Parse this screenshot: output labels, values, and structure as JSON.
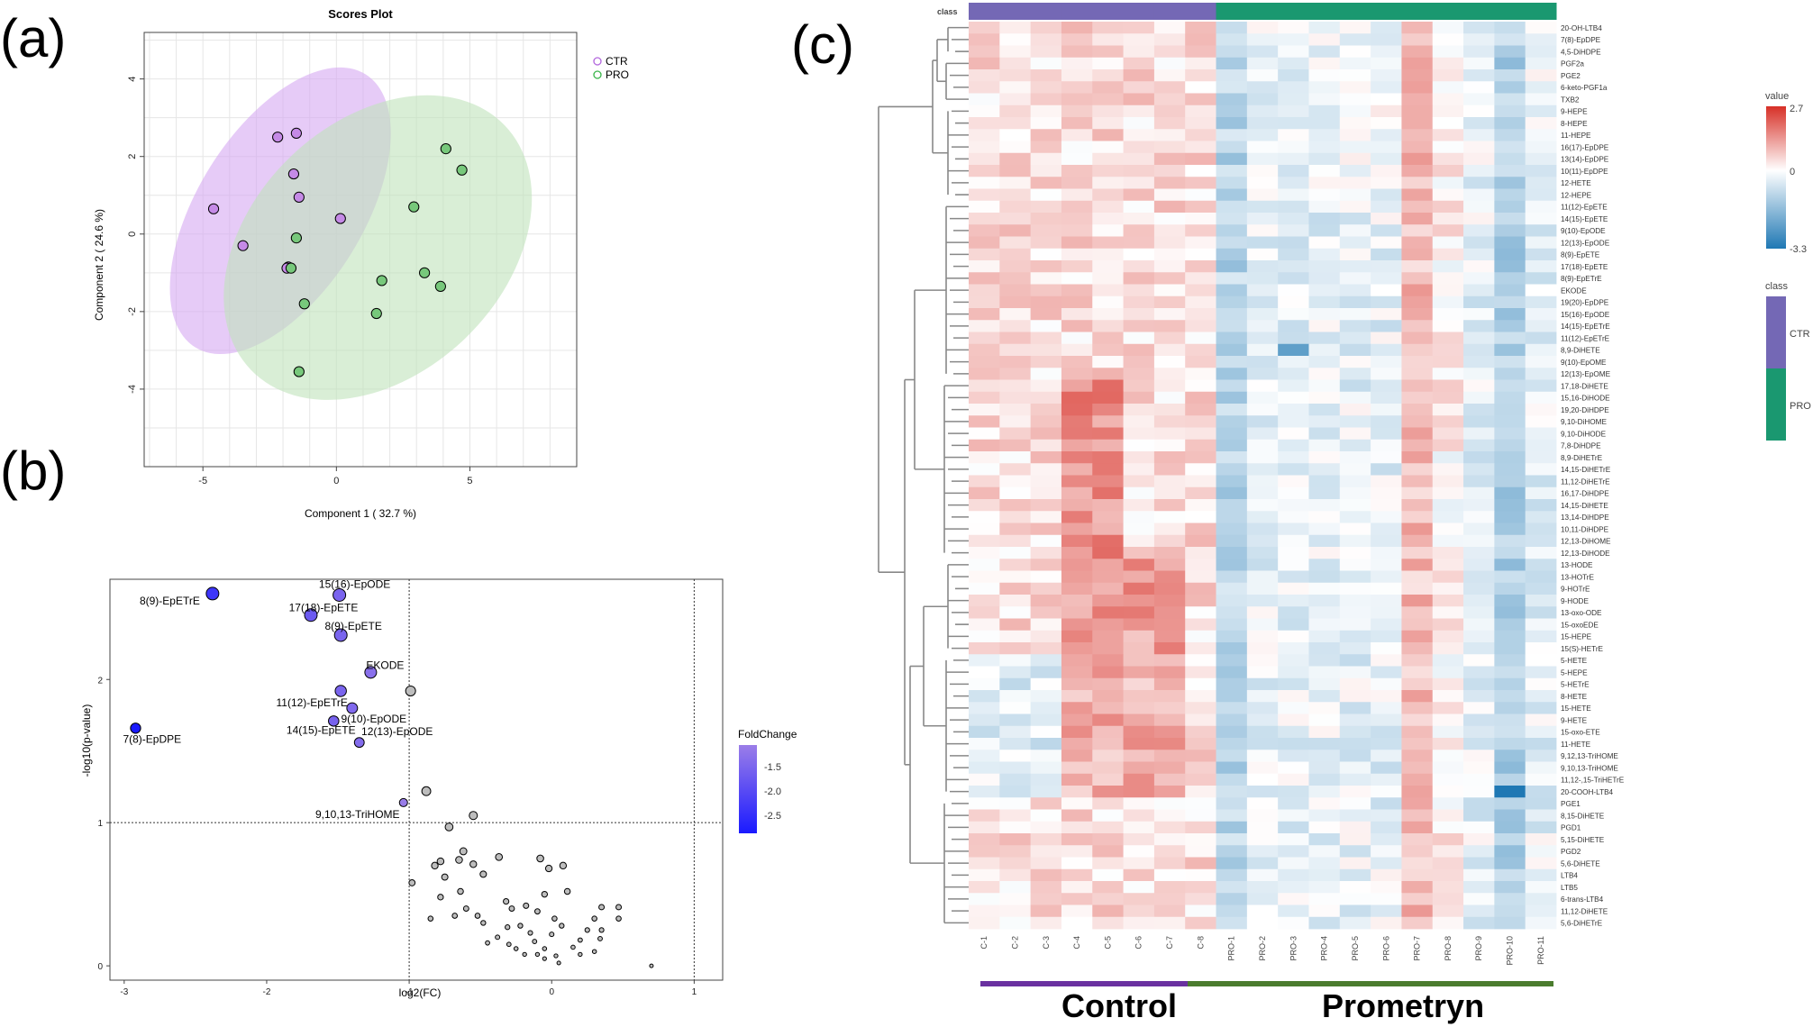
{
  "panels": {
    "a": "(a)",
    "b": "(b)",
    "c": "(c)"
  },
  "colors": {
    "ctr": "#b266dd",
    "pro": "#3ab54a",
    "ctr_fill": "#d6a8f2",
    "pro_fill": "#bfe3bb",
    "class_ctr": "#7468b5",
    "class_pro": "#1a9870",
    "hm_low": "#1f78b4",
    "hm_mid": "#ffffff",
    "hm_high": "#d73027",
    "bar_control": "#6a31a0",
    "bar_prometryn": "#4b7c2e"
  },
  "chart_data": [
    {
      "type": "scatter",
      "title": "Scores Plot",
      "xlabel": "Component 1 ( 32.7 %)",
      "ylabel": "Component 2 ( 24.6 %)",
      "xlim": [
        -7.2,
        9.0
      ],
      "ylim": [
        -6.0,
        5.2
      ],
      "xticks": [
        "-5",
        "0",
        "5"
      ],
      "yticks": [
        "4",
        "2",
        "0",
        "-2",
        "-4"
      ],
      "legend": [
        "CTR",
        "PRO"
      ],
      "series": [
        {
          "name": "CTR",
          "points": [
            [
              -4.6,
              0.65
            ],
            [
              -3.5,
              -0.3
            ],
            [
              -2.2,
              2.5
            ],
            [
              -1.5,
              2.6
            ],
            [
              -1.6,
              1.55
            ],
            [
              -1.4,
              0.95
            ],
            [
              -1.8,
              -0.85
            ],
            [
              0.15,
              0.4
            ],
            [
              -1.85,
              -0.88
            ]
          ]
        },
        {
          "name": "PRO",
          "points": [
            [
              4.1,
              2.2
            ],
            [
              4.7,
              1.65
            ],
            [
              2.9,
              0.7
            ],
            [
              -1.5,
              -0.1
            ],
            [
              1.7,
              -1.2
            ],
            [
              3.3,
              -1.0
            ],
            [
              3.9,
              -1.35
            ],
            [
              -1.2,
              -1.8
            ],
            [
              1.5,
              -2.05
            ],
            [
              -1.4,
              -3.55
            ],
            [
              -1.7,
              -0.88
            ]
          ]
        }
      ]
    },
    {
      "type": "scatter",
      "title": "",
      "xlabel": "log2(FC)",
      "ylabel": "-log10(p-value)",
      "xlim": [
        -3.1,
        1.2
      ],
      "ylim": [
        -0.1,
        2.7
      ],
      "xticks": [
        "-3",
        "-2",
        "-1",
        "0",
        "1"
      ],
      "yticks": [
        "0",
        "1",
        "2"
      ],
      "legend_title": "FoldChange",
      "legend_ticks": [
        "-1.5",
        "-2.0",
        "-2.5"
      ],
      "significant": [
        {
          "label": "8(9)-EpETrE",
          "x": -2.38,
          "y": 2.6,
          "fc": -2.38
        },
        {
          "label": "15(16)-EpODE",
          "x": -1.49,
          "y": 2.59,
          "fc": -1.49
        },
        {
          "label": "17(18)-EpETE",
          "x": -1.69,
          "y": 2.45,
          "fc": -1.69
        },
        {
          "label": "8(9)-EpETE",
          "x": -1.48,
          "y": 2.31,
          "fc": -1.48
        },
        {
          "label": "EKODE",
          "x": -1.27,
          "y": 2.05,
          "fc": -1.27
        },
        {
          "label": "11(12)-EpETrE",
          "x": -1.48,
          "y": 1.92,
          "fc": -1.48
        },
        {
          "label": "9(10)-EpODE",
          "x": -1.4,
          "y": 1.8,
          "fc": -1.4
        },
        {
          "label": "14(15)-EpETE",
          "x": -1.53,
          "y": 1.71,
          "fc": -1.53
        },
        {
          "label": "12(13)-EpODE",
          "x": -1.35,
          "y": 1.56,
          "fc": -1.35
        },
        {
          "label": "7(8)-EpDPE",
          "x": -2.92,
          "y": 1.66,
          "fc": -2.92
        },
        {
          "label": "9,10,13-TriHOME",
          "x": -1.04,
          "y": 1.14,
          "fc": -1.04
        }
      ],
      "other_points": [
        [
          -0.99,
          1.92
        ],
        [
          -0.88,
          1.22
        ],
        [
          -0.55,
          1.05
        ],
        [
          -0.72,
          0.97
        ],
        [
          -0.62,
          0.8
        ],
        [
          -0.37,
          0.76
        ],
        [
          -0.08,
          0.75
        ],
        [
          0.08,
          0.7
        ],
        [
          -0.02,
          0.68
        ],
        [
          -0.78,
          0.73
        ],
        [
          -0.82,
          0.7
        ],
        [
          -0.65,
          0.74
        ],
        [
          -0.55,
          0.71
        ],
        [
          -0.48,
          0.64
        ],
        [
          -0.98,
          0.58
        ],
        [
          -0.75,
          0.62
        ],
        [
          -0.78,
          0.48
        ],
        [
          -0.64,
          0.52
        ],
        [
          -0.6,
          0.4
        ],
        [
          -0.52,
          0.35
        ],
        [
          -0.48,
          0.3
        ],
        [
          -0.32,
          0.45
        ],
        [
          -0.28,
          0.4
        ],
        [
          -0.18,
          0.42
        ],
        [
          -0.1,
          0.38
        ],
        [
          -0.05,
          0.5
        ],
        [
          0.02,
          0.33
        ],
        [
          0.07,
          0.28
        ],
        [
          -0.22,
          0.28
        ],
        [
          -0.15,
          0.23
        ],
        [
          -0.38,
          0.2
        ],
        [
          -0.45,
          0.16
        ],
        [
          -0.3,
          0.15
        ],
        [
          -0.25,
          0.12
        ],
        [
          -0.12,
          0.17
        ],
        [
          -0.05,
          0.12
        ],
        [
          0.03,
          0.07
        ],
        [
          -0.1,
          0.08
        ],
        [
          0.2,
          0.18
        ],
        [
          0.25,
          0.25
        ],
        [
          0.3,
          0.33
        ],
        [
          0.35,
          0.41
        ],
        [
          0.47,
          0.41
        ],
        [
          0.47,
          0.33
        ],
        [
          0.35,
          0.25
        ],
        [
          0.34,
          0.19
        ],
        [
          0.3,
          0.1
        ],
        [
          0.15,
          0.13
        ],
        [
          0.2,
          0.08
        ],
        [
          -0.85,
          0.33
        ],
        [
          0.05,
          0.02
        ],
        [
          0.7,
          0.0
        ],
        [
          -0.19,
          0.08
        ],
        [
          -0.31,
          0.27
        ],
        [
          0.11,
          0.52
        ],
        [
          0.0,
          0.22
        ],
        [
          -0.68,
          0.35
        ],
        [
          -0.05,
          0.05
        ]
      ]
    },
    {
      "type": "heatmap",
      "class_label": "class",
      "columns": [
        "C-1",
        "C-2",
        "C-3",
        "C-4",
        "C-5",
        "C-6",
        "C-7",
        "C-8",
        "PRO-1",
        "PRO-2",
        "PRO-3",
        "PRO-4",
        "PRO-5",
        "PRO-6",
        "PRO-7",
        "PRO-8",
        "PRO-9",
        "PRO-10",
        "PRO-11"
      ],
      "column_class": [
        "CTR",
        "CTR",
        "CTR",
        "CTR",
        "CTR",
        "CTR",
        "CTR",
        "CTR",
        "PRO",
        "PRO",
        "PRO",
        "PRO",
        "PRO",
        "PRO",
        "PRO",
        "PRO",
        "PRO",
        "PRO",
        "PRO"
      ],
      "rows": [
        "20-OH-LTB4",
        "7(8)-EpDPE",
        "4,5-DiHDPE",
        "PGF2a",
        "PGE2",
        "6-keto-PGF1a",
        "TXB2",
        "9-HEPE",
        "8-HEPE",
        "11-HEPE",
        "16(17)-EpDPE",
        "13(14)-EpDPE",
        "10(11)-EpDPE",
        "12-HETE",
        "12-HEPE",
        "11(12)-EpETE",
        "14(15)-EpETE",
        "9(10)-EpODE",
        "12(13)-EpODE",
        "8(9)-EpETE",
        "17(18)-EpETE",
        "8(9)-EpETrE",
        "EKODE",
        "19(20)-EpDPE",
        "15(16)-EpODE",
        "14(15)-EpETrE",
        "11(12)-EpETrE",
        "8,9-DiHETE",
        "9(10)-EpOME",
        "12(13)-EpOME",
        "17,18-DiHETE",
        "15,16-DiHODE",
        "19,20-DiHDPE",
        "9,10-DiHOME",
        "9,10-DiHODE",
        "7,8-DiHDPE",
        "8,9-DiHETrE",
        "14,15-DiHETrE",
        "11,12-DiHETrE",
        "16,17-DiHDPE",
        "14,15-DiHETE",
        "13,14-DiHDPE",
        "10,11-DiHDPE",
        "12,13-DiHOME",
        "12,13-DiHODE",
        "13-HODE",
        "13-HOTrE",
        "9-HOTrE",
        "9-HODE",
        "13-oxo-ODE",
        "15-oxoEDE",
        "15-HEPE",
        "15(S)-HETrE",
        "5-HETE",
        "5-HEPE",
        "5-HETrE",
        "8-HETE",
        "15-HETE",
        "9-HETE",
        "15-oxo-ETE",
        "11-HETE",
        "9,12,13-TriHOME",
        "9,10,13-TriHOME",
        "11,12-,15-TriHETrE",
        "20-COOH-LTB4",
        "PGE1",
        "8,15-DiHETE",
        "PGD1",
        "5,15-DiHETE",
        "PGD2",
        "5,6-DiHETE",
        "LTB4",
        "LTB5",
        "6-trans-LTB4",
        "11,12-DiHETE",
        "5,6-DiHETrE"
      ],
      "legend_value_title": "value",
      "legend_value_ticks": [
        "2.7",
        "0",
        "-3.3"
      ],
      "legend_class_title": "class",
      "legend_classes": [
        "CTR",
        "PRO"
      ],
      "vmin": -3.3,
      "vmax": 2.7
    }
  ],
  "group_labels": {
    "control": "Control",
    "prometryn": "Prometryn"
  }
}
